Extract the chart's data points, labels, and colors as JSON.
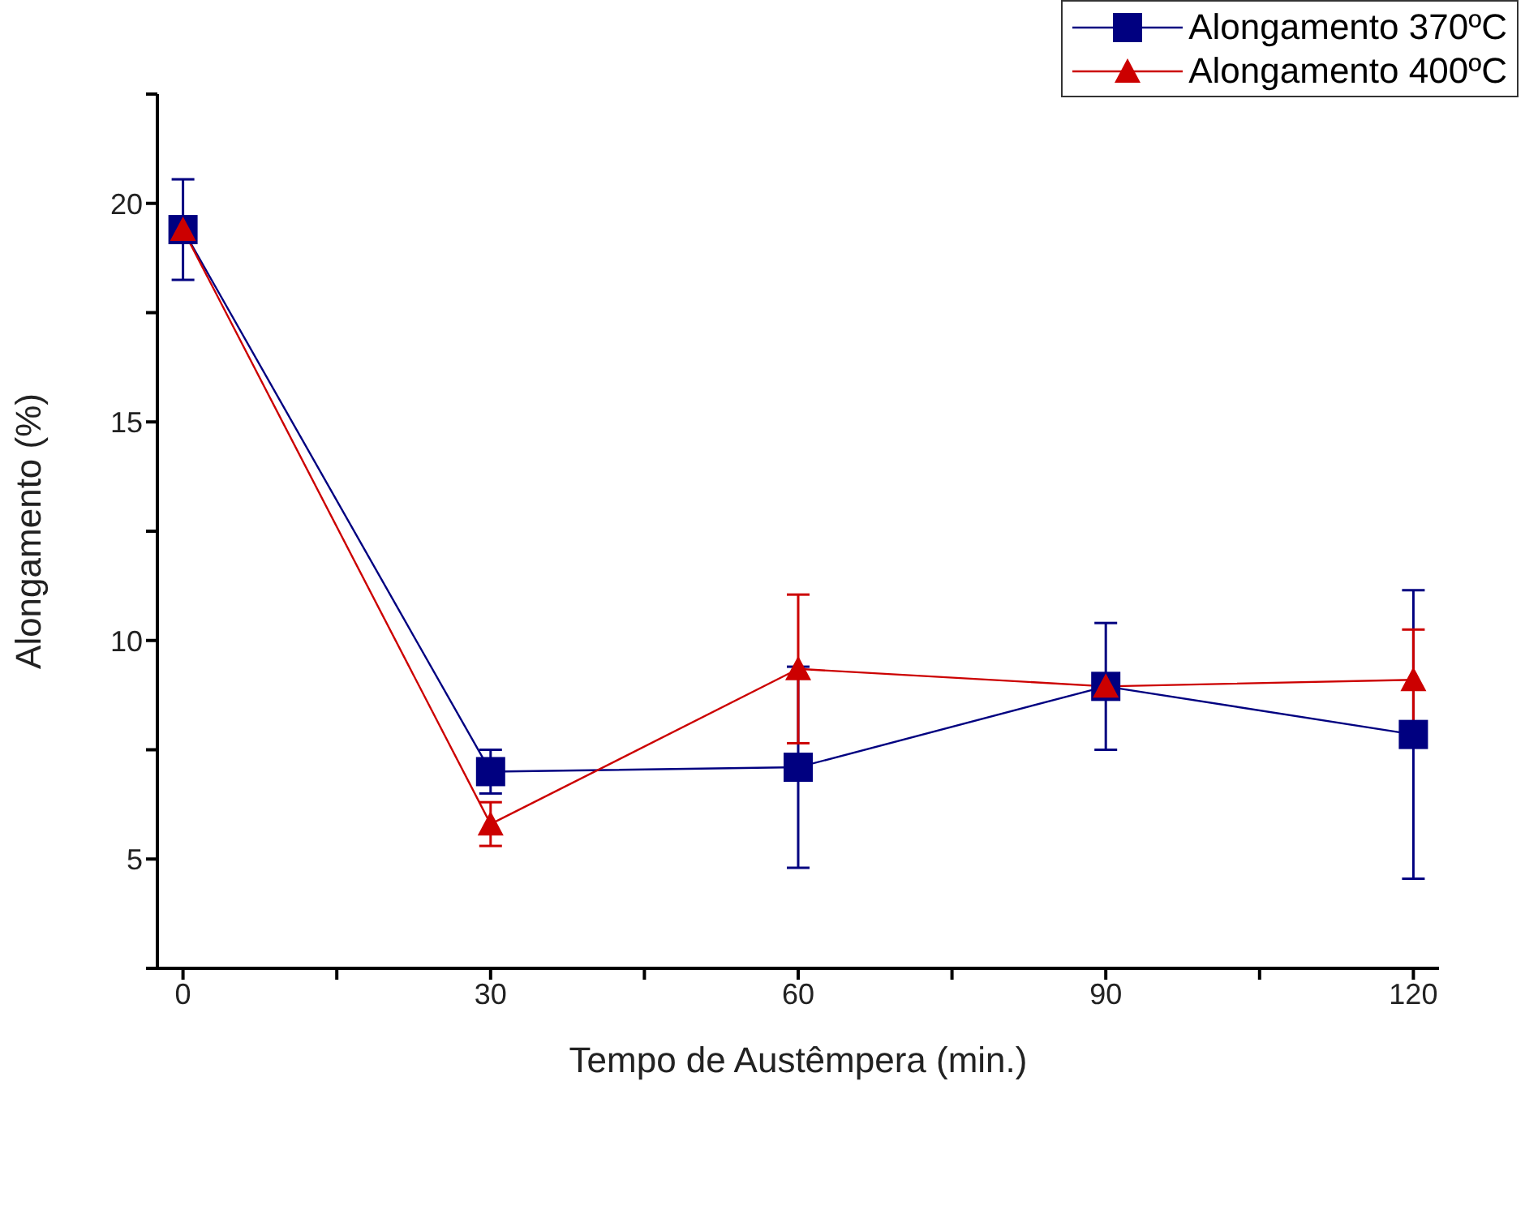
{
  "chart_data": {
    "type": "line",
    "xlabel": "Tempo de Austêmpera (min.)",
    "ylabel": "Alongamento (%)",
    "x": [
      0,
      30,
      60,
      90,
      120
    ],
    "series": [
      {
        "name": "Alongamento 370ºC",
        "color": "#000080",
        "marker": "square",
        "values": [
          19.4,
          7.0,
          7.1,
          8.95,
          7.85
        ],
        "errors": [
          1.15,
          0.5,
          2.3,
          1.45,
          3.3
        ]
      },
      {
        "name": "Alongamento 400ºC",
        "color": "#cc0000",
        "marker": "triangle",
        "values": [
          19.4,
          5.8,
          9.35,
          8.95,
          9.1
        ],
        "errors": [
          null,
          0.5,
          1.7,
          null,
          1.15
        ]
      }
    ],
    "xlim": [
      -2.5,
      122.5
    ],
    "xticks": [
      0,
      {
        "value": 15,
        "label": null
      },
      30,
      {
        "value": 45,
        "label": null
      },
      60,
      {
        "value": 75,
        "label": null
      },
      90,
      {
        "value": 105,
        "label": null
      },
      120
    ],
    "ylim": [
      2.5,
      22.5
    ],
    "yticks": [
      {
        "value": 2.5,
        "label": null
      },
      5,
      {
        "value": 7.5,
        "label": null
      },
      10,
      {
        "value": 12.5,
        "label": null
      },
      15,
      {
        "value": 17.5,
        "label": null
      },
      20,
      {
        "value": 22.5,
        "label": null
      }
    ],
    "grid": false,
    "legend": "top right"
  }
}
